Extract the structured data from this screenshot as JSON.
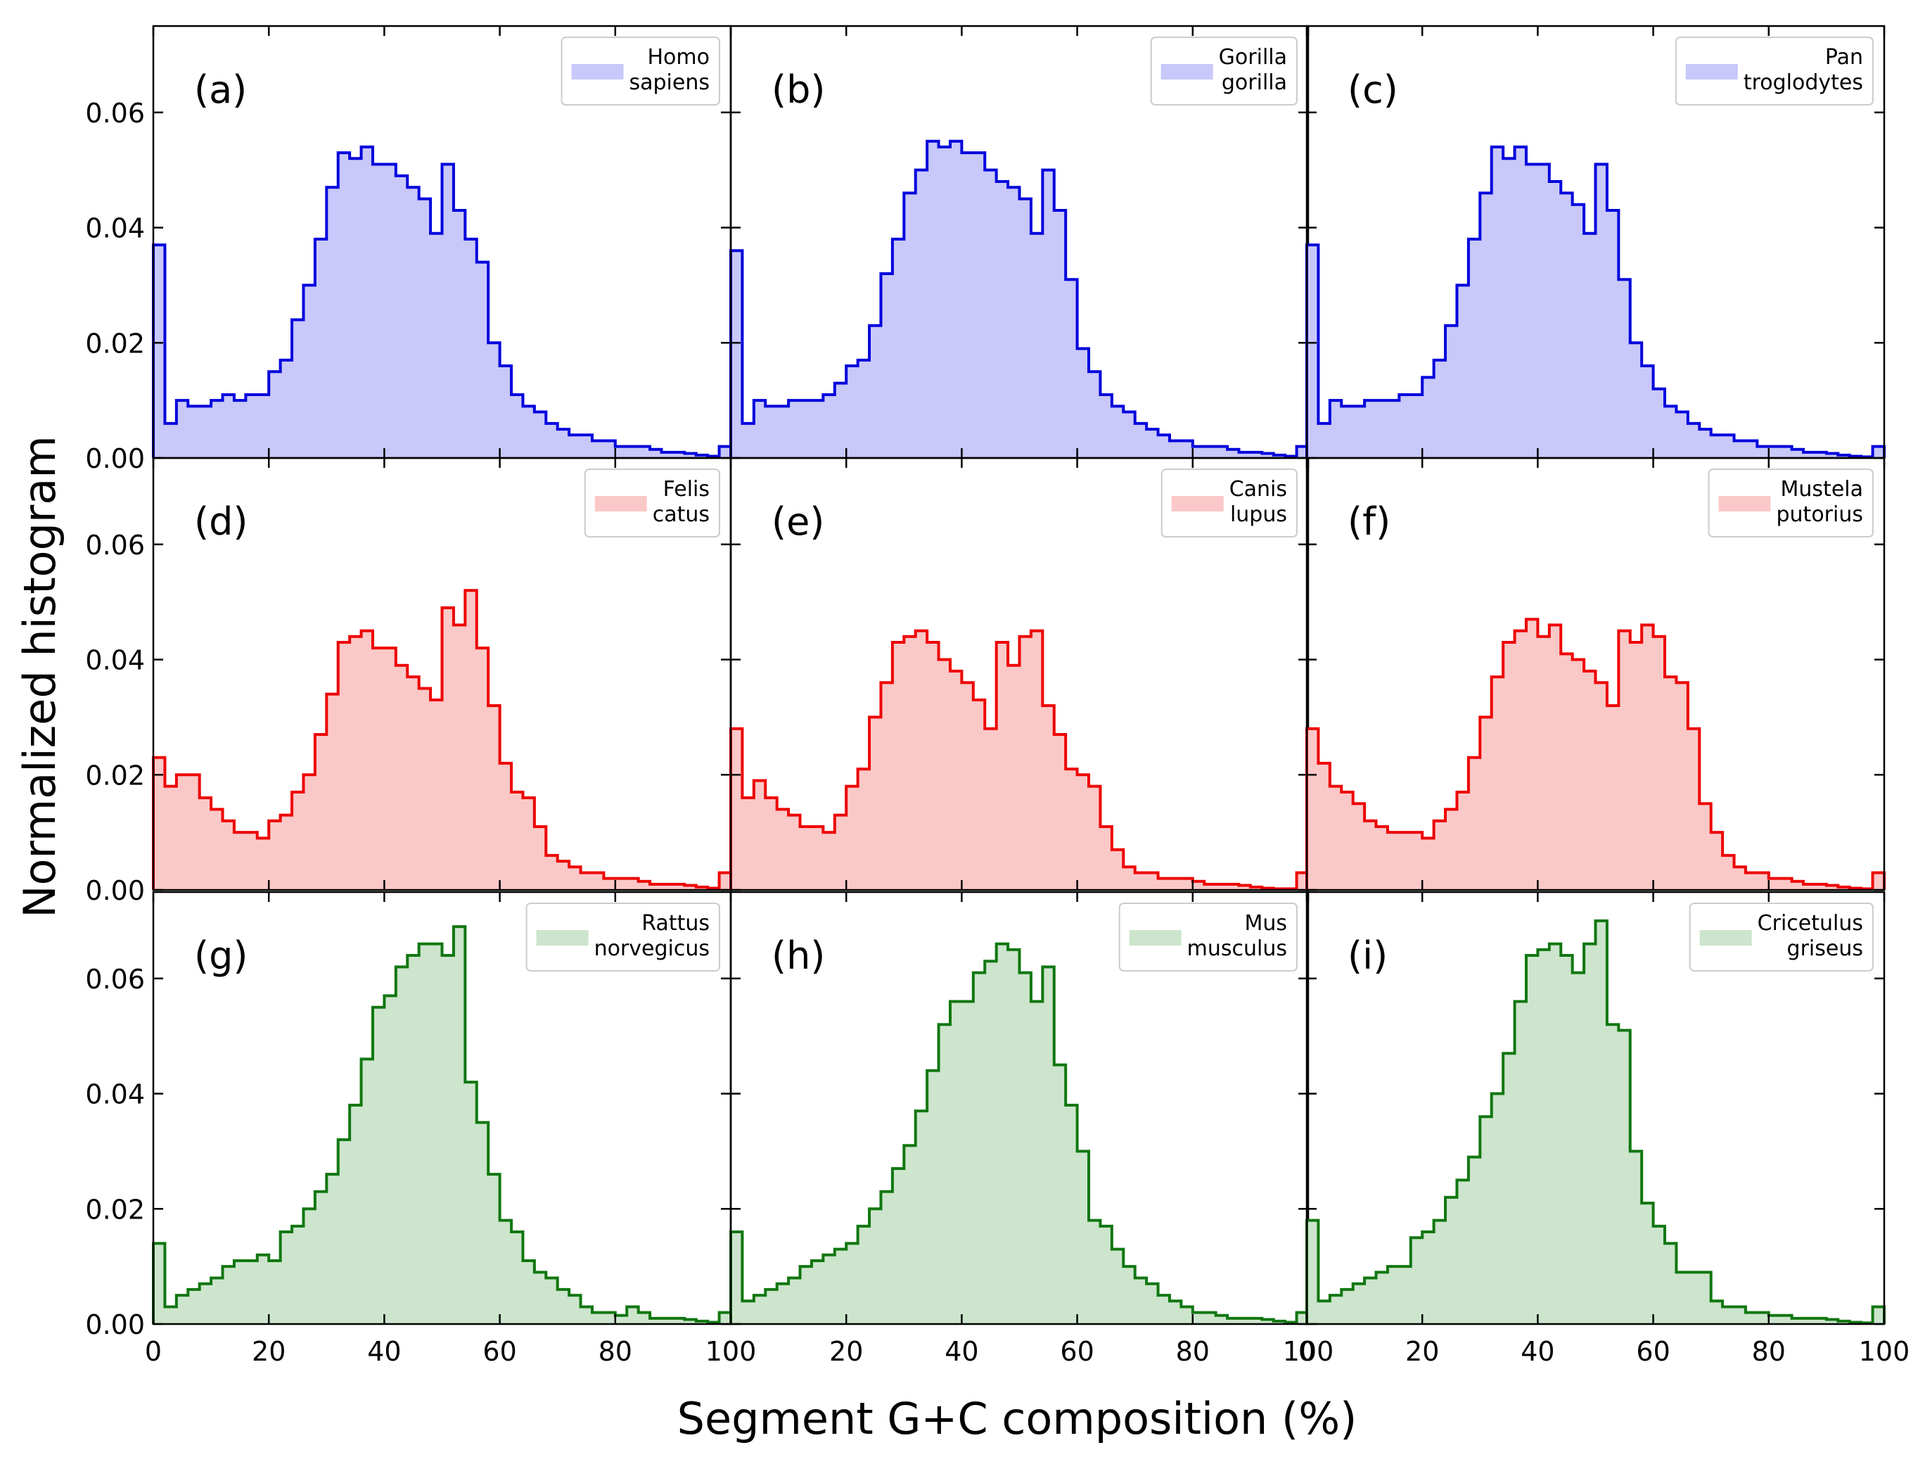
{
  "chart_data": {
    "type": "step-histogram-grid",
    "xlabel": "Segment G+C composition (%)",
    "ylabel": "Normalized histogram",
    "xlim": [
      0,
      100
    ],
    "ylim": [
      0,
      0.075
    ],
    "xticks": [
      0,
      20,
      40,
      60,
      80,
      100
    ],
    "xtick_labels": [
      "0",
      "20",
      "40",
      "60",
      "80",
      "100"
    ],
    "yticks": [
      0,
      0.02,
      0.04,
      0.06
    ],
    "ytick_labels": [
      "0.00",
      "0.02",
      "0.04",
      "0.06"
    ],
    "bin_width": 2,
    "colors": {
      "blue": {
        "line": "#0000dd",
        "fill": "#c8c8fa"
      },
      "red": {
        "line": "#ee0000",
        "fill": "#fbc8c8"
      },
      "green": {
        "line": "#117711",
        "fill": "#cce5cc"
      }
    },
    "panels": [
      {
        "label": "(a)",
        "legend": [
          "Homo",
          "sapiens"
        ],
        "color": "blue",
        "values": [
          0.037,
          0.006,
          0.01,
          0.009,
          0.009,
          0.01,
          0.011,
          0.01,
          0.011,
          0.011,
          0.015,
          0.017,
          0.024,
          0.03,
          0.038,
          0.047,
          0.053,
          0.052,
          0.054,
          0.051,
          0.051,
          0.049,
          0.047,
          0.045,
          0.039,
          0.051,
          0.043,
          0.038,
          0.034,
          0.02,
          0.016,
          0.011,
          0.009,
          0.008,
          0.006,
          0.005,
          0.004,
          0.004,
          0.003,
          0.003,
          0.002,
          0.002,
          0.002,
          0.0015,
          0.001,
          0.001,
          0.0008,
          0.0005,
          0.0003,
          0.002
        ]
      },
      {
        "label": "(b)",
        "legend": [
          "Gorilla",
          "gorilla"
        ],
        "color": "blue",
        "values": [
          0.036,
          0.006,
          0.01,
          0.009,
          0.009,
          0.01,
          0.01,
          0.01,
          0.011,
          0.013,
          0.016,
          0.017,
          0.023,
          0.032,
          0.038,
          0.046,
          0.05,
          0.055,
          0.054,
          0.055,
          0.053,
          0.053,
          0.05,
          0.048,
          0.047,
          0.045,
          0.039,
          0.05,
          0.043,
          0.031,
          0.019,
          0.015,
          0.011,
          0.009,
          0.008,
          0.006,
          0.005,
          0.004,
          0.003,
          0.003,
          0.002,
          0.002,
          0.002,
          0.0015,
          0.001,
          0.001,
          0.0008,
          0.0005,
          0.0003,
          0.002
        ]
      },
      {
        "label": "(c)",
        "legend": [
          "Pan",
          "troglodytes"
        ],
        "color": "blue",
        "values": [
          0.037,
          0.006,
          0.01,
          0.009,
          0.009,
          0.01,
          0.01,
          0.01,
          0.011,
          0.011,
          0.014,
          0.017,
          0.023,
          0.03,
          0.038,
          0.046,
          0.054,
          0.052,
          0.054,
          0.051,
          0.051,
          0.048,
          0.046,
          0.044,
          0.039,
          0.051,
          0.043,
          0.031,
          0.02,
          0.016,
          0.012,
          0.009,
          0.008,
          0.006,
          0.005,
          0.004,
          0.004,
          0.003,
          0.003,
          0.002,
          0.002,
          0.002,
          0.0015,
          0.001,
          0.001,
          0.0008,
          0.0005,
          0.0003,
          0.0002,
          0.002
        ]
      },
      {
        "label": "(d)",
        "legend": [
          "Felis",
          "catus"
        ],
        "color": "red",
        "values": [
          0.023,
          0.018,
          0.02,
          0.02,
          0.016,
          0.014,
          0.012,
          0.01,
          0.01,
          0.009,
          0.012,
          0.013,
          0.017,
          0.02,
          0.027,
          0.034,
          0.043,
          0.044,
          0.045,
          0.042,
          0.042,
          0.039,
          0.037,
          0.035,
          0.033,
          0.049,
          0.046,
          0.052,
          0.042,
          0.032,
          0.022,
          0.017,
          0.016,
          0.011,
          0.006,
          0.005,
          0.004,
          0.003,
          0.003,
          0.002,
          0.002,
          0.002,
          0.0015,
          0.001,
          0.001,
          0.001,
          0.0008,
          0.0005,
          0.0003,
          0.003
        ]
      },
      {
        "label": "(e)",
        "legend": [
          "Canis",
          "lupus"
        ],
        "color": "red",
        "values": [
          0.028,
          0.016,
          0.019,
          0.016,
          0.014,
          0.013,
          0.011,
          0.011,
          0.01,
          0.013,
          0.018,
          0.021,
          0.03,
          0.036,
          0.043,
          0.044,
          0.045,
          0.043,
          0.04,
          0.038,
          0.036,
          0.033,
          0.028,
          0.043,
          0.039,
          0.044,
          0.045,
          0.032,
          0.027,
          0.021,
          0.02,
          0.018,
          0.011,
          0.007,
          0.004,
          0.003,
          0.003,
          0.002,
          0.002,
          0.002,
          0.0015,
          0.001,
          0.001,
          0.001,
          0.0008,
          0.0005,
          0.0003,
          0.0002,
          0.0002,
          0.003
        ]
      },
      {
        "label": "(f)",
        "legend": [
          "Mustela",
          "putorius"
        ],
        "color": "red",
        "values": [
          0.028,
          0.022,
          0.018,
          0.017,
          0.015,
          0.012,
          0.011,
          0.01,
          0.01,
          0.01,
          0.009,
          0.012,
          0.014,
          0.017,
          0.023,
          0.03,
          0.037,
          0.043,
          0.045,
          0.047,
          0.044,
          0.046,
          0.041,
          0.04,
          0.038,
          0.036,
          0.032,
          0.045,
          0.043,
          0.046,
          0.044,
          0.037,
          0.036,
          0.028,
          0.015,
          0.01,
          0.006,
          0.004,
          0.003,
          0.003,
          0.002,
          0.002,
          0.0015,
          0.001,
          0.001,
          0.0008,
          0.0005,
          0.0003,
          0.0002,
          0.003
        ]
      },
      {
        "label": "(g)",
        "legend": [
          "Rattus",
          "norvegicus"
        ],
        "color": "green",
        "values": [
          0.014,
          0.003,
          0.005,
          0.006,
          0.007,
          0.008,
          0.01,
          0.011,
          0.011,
          0.012,
          0.011,
          0.016,
          0.017,
          0.02,
          0.023,
          0.026,
          0.032,
          0.038,
          0.046,
          0.055,
          0.057,
          0.062,
          0.064,
          0.066,
          0.066,
          0.064,
          0.069,
          0.042,
          0.035,
          0.026,
          0.018,
          0.016,
          0.011,
          0.009,
          0.008,
          0.006,
          0.005,
          0.003,
          0.002,
          0.002,
          0.0015,
          0.003,
          0.002,
          0.001,
          0.001,
          0.001,
          0.0008,
          0.0005,
          0.0003,
          0.002
        ]
      },
      {
        "label": "(h)",
        "legend": [
          "Mus",
          "musculus"
        ],
        "color": "green",
        "values": [
          0.016,
          0.004,
          0.005,
          0.006,
          0.007,
          0.008,
          0.01,
          0.011,
          0.012,
          0.013,
          0.014,
          0.017,
          0.02,
          0.023,
          0.027,
          0.031,
          0.037,
          0.044,
          0.052,
          0.056,
          0.056,
          0.061,
          0.063,
          0.066,
          0.065,
          0.061,
          0.056,
          0.062,
          0.045,
          0.038,
          0.03,
          0.018,
          0.017,
          0.013,
          0.01,
          0.008,
          0.007,
          0.005,
          0.004,
          0.003,
          0.002,
          0.002,
          0.0015,
          0.001,
          0.001,
          0.001,
          0.0008,
          0.0005,
          0.0003,
          0.002
        ]
      },
      {
        "label": "(i)",
        "legend": [
          "Cricetulus",
          "griseus"
        ],
        "color": "green",
        "values": [
          0.018,
          0.004,
          0.005,
          0.006,
          0.007,
          0.008,
          0.009,
          0.01,
          0.01,
          0.015,
          0.016,
          0.018,
          0.022,
          0.025,
          0.029,
          0.036,
          0.04,
          0.047,
          0.056,
          0.064,
          0.065,
          0.066,
          0.064,
          0.061,
          0.066,
          0.07,
          0.052,
          0.051,
          0.03,
          0.021,
          0.017,
          0.014,
          0.009,
          0.009,
          0.009,
          0.004,
          0.003,
          0.003,
          0.002,
          0.002,
          0.0015,
          0.0015,
          0.001,
          0.001,
          0.001,
          0.0008,
          0.0005,
          0.0003,
          0.0002,
          0.003
        ]
      }
    ]
  }
}
